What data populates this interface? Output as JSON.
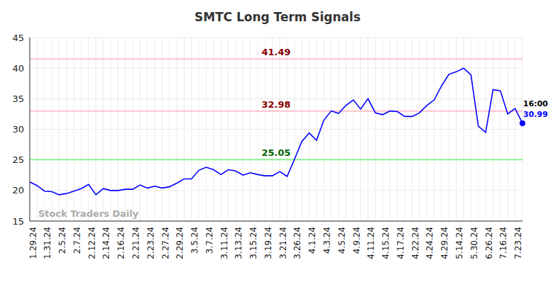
{
  "chart_data": {
    "type": "line",
    "title": "SMTC Long Term Signals",
    "categories": [
      "1.29.24",
      null,
      "1.31.24",
      null,
      "2.5.24",
      null,
      "2.7.24",
      null,
      "2.12.24",
      null,
      "2.14.24",
      null,
      "2.16.24",
      null,
      "2.21.24",
      null,
      "2.23.24",
      null,
      "2.27.24",
      null,
      "2.29.24",
      null,
      "3.5.24",
      null,
      "3.7.24",
      null,
      "3.11.24",
      null,
      "3.13.24",
      null,
      "3.15.24",
      null,
      "3.19.24",
      null,
      "3.21.24",
      null,
      "3.26.24",
      null,
      "4.1.24",
      null,
      "4.3.24",
      null,
      "4.5.24",
      null,
      "4.9.24",
      null,
      "4.11.24",
      null,
      "4.15.24",
      null,
      "4.17.24",
      null,
      "4.22.24",
      null,
      "4.24.24",
      null,
      "4.29.24",
      null,
      "5.14.24",
      null,
      "5.30.24",
      null,
      "6.26.24",
      null,
      "7.16.24",
      null,
      "7.23.24",
      null
    ],
    "values": [
      21.4,
      20.8,
      19.9,
      19.8,
      19.3,
      19.5,
      19.9,
      20.3,
      21.0,
      19.3,
      20.3,
      20.0,
      20.0,
      20.2,
      20.2,
      20.9,
      20.4,
      20.7,
      20.4,
      20.6,
      21.2,
      21.9,
      21.9,
      23.3,
      23.8,
      23.4,
      22.6,
      23.4,
      23.2,
      22.5,
      22.9,
      22.6,
      22.4,
      22.4,
      23.1,
      22.3,
      25.1,
      28.0,
      29.4,
      28.2,
      31.5,
      33.0,
      32.6,
      33.9,
      34.8,
      33.3,
      35.0,
      32.7,
      32.4,
      33.0,
      32.9,
      32.1,
      32.1,
      32.7,
      33.9,
      34.8,
      37.1,
      39.0,
      39.4,
      40.0,
      38.9,
      30.5,
      29.5,
      36.5,
      36.3,
      32.5,
      33.4,
      30.99
    ],
    "color": "#0000ff",
    "ylim": [
      15,
      45
    ],
    "yticks": [
      15,
      20,
      25,
      30,
      35,
      40,
      45
    ],
    "grid": true,
    "marker": "last",
    "levels": [
      {
        "value": 41.49,
        "color": "#ffc0cb",
        "label_color": "#8b0000"
      },
      {
        "value": 32.98,
        "color": "#ffc0cb",
        "label_color": "#8b0000"
      },
      {
        "value": 25.05,
        "color": "#90ee90",
        "label_color": "#006400"
      }
    ],
    "end_label": "16:00",
    "watermark": "Stock Traders Daily"
  }
}
